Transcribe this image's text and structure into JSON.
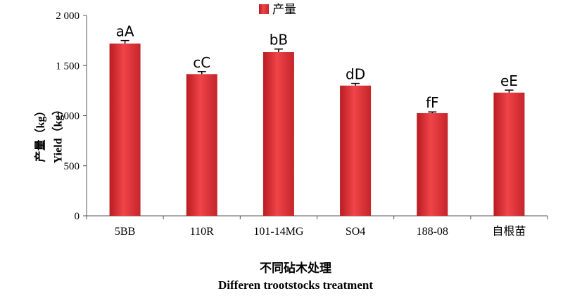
{
  "chart_data": {
    "type": "bar",
    "categories": [
      "5BB",
      "110R",
      "101-14MG",
      "SO4",
      "188-08",
      "自根苗"
    ],
    "series": [
      {
        "name": "产量",
        "values": [
          1720,
          1415,
          1635,
          1300,
          1025,
          1230
        ],
        "errors": [
          30,
          25,
          30,
          22,
          12,
          25
        ],
        "labels": [
          "aA",
          "cC",
          "bB",
          "dD",
          "fF",
          "eE"
        ]
      }
    ],
    "ylim": [
      0,
      2000
    ],
    "yticks": [
      0,
      500,
      1000,
      1500,
      2000
    ],
    "ytick_labels": [
      "0",
      "500",
      "1 000",
      "1 500",
      "2 000"
    ],
    "ylabel_cn": "产量（kg）",
    "ylabel_en": "Yield（kg）",
    "xlabel_cn": "不同砧木处理",
    "xlabel_en": "Differen trootstocks  treatment",
    "legend_position": "top",
    "grid": false,
    "bar_color": "#e8353b"
  }
}
